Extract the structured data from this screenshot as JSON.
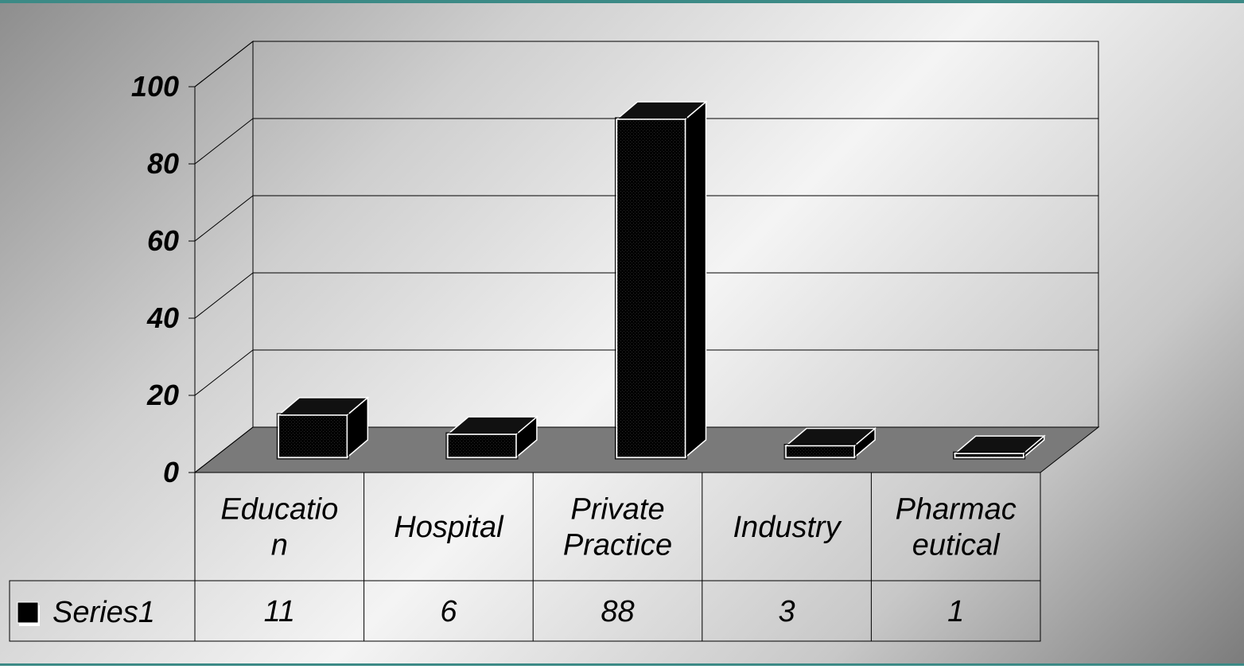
{
  "chart_data": {
    "type": "bar",
    "categories": [
      "Education",
      "Hospital",
      "Private Practice",
      "Industry",
      "Pharmaceutical"
    ],
    "category_label_lines": [
      [
        "Educatio",
        "n"
      ],
      [
        "Hospital"
      ],
      [
        "Private",
        "Practice"
      ],
      [
        "Industry"
      ],
      [
        "Pharmac",
        "eutical"
      ]
    ],
    "series": [
      {
        "name": "Series1",
        "values": [
          11,
          6,
          88,
          3,
          1
        ]
      }
    ],
    "value_labels": [
      "11",
      "6",
      "88",
      "3",
      "1"
    ],
    "yticks": [
      "0",
      "20",
      "40",
      "60",
      "80",
      "100"
    ],
    "ylim": [
      0,
      100
    ],
    "grid": true,
    "data_table": true,
    "legend": "data-table-left",
    "bar_color": "#000000",
    "floor_color": "#7a7a7a"
  }
}
